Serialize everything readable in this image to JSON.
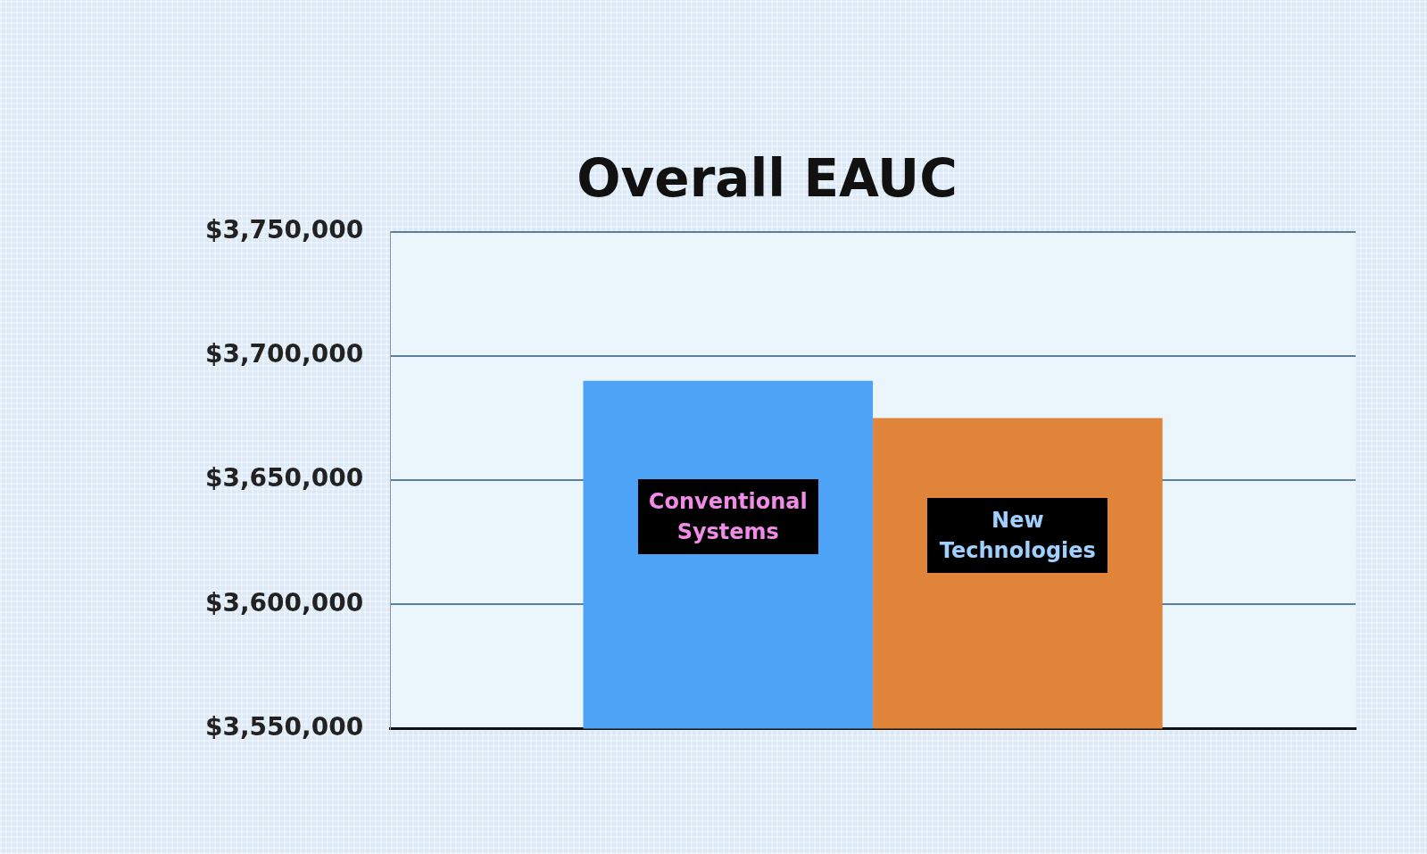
{
  "chart_data": {
    "type": "bar",
    "title": "Overall EAUC",
    "categories": [
      null
    ],
    "series": [
      {
        "name": "Conventional Systems",
        "color": "#4da3f5",
        "values": [
          3690000
        ]
      },
      {
        "name": "New Technologies",
        "color": "#e0843a",
        "values": [
          3675000
        ]
      }
    ],
    "ylim": [
      3550000,
      3750000
    ],
    "yticks": [
      {
        "value": 3550000,
        "label": "$3,550,000"
      },
      {
        "value": 3600000,
        "label": "$3,600,000"
      },
      {
        "value": 3650000,
        "label": "$3,650,000"
      },
      {
        "value": 3700000,
        "label": "$3,700,000"
      },
      {
        "value": 3750000,
        "label": "$3,750,000"
      }
    ],
    "grid": "y",
    "legend": false
  }
}
